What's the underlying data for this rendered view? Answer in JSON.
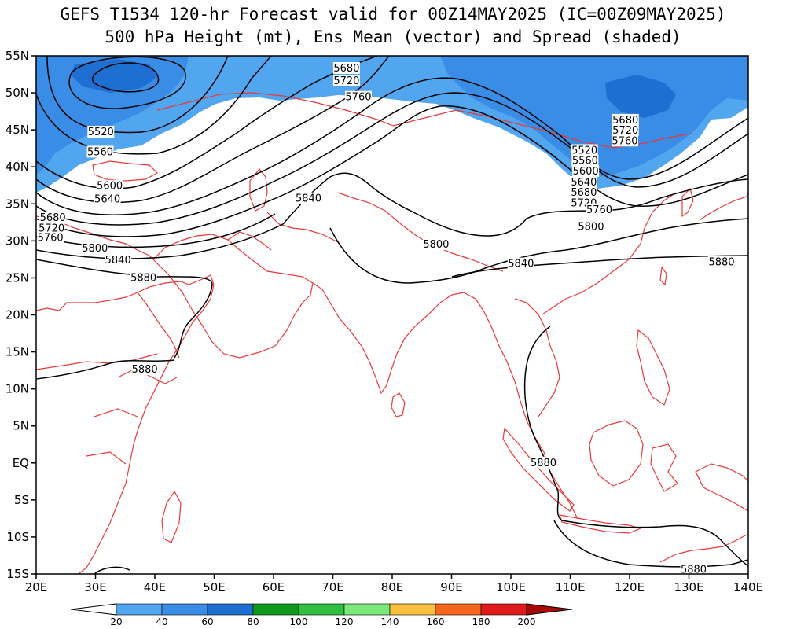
{
  "title_line1": "GEFS T1534 120-hr Forecast valid for 00Z14MAY2025 (IC=00Z09MAY2025)",
  "title_line2": "500 hPa Height (mt), Ens Mean (vector) and Spread (shaded)",
  "map": {
    "lon_range": [
      20,
      140
    ],
    "lat_range": [
      -15,
      55
    ],
    "lon_labels": [
      "20E",
      "30E",
      "40E",
      "50E",
      "60E",
      "70E",
      "80E",
      "90E",
      "100E",
      "110E",
      "120E",
      "130E",
      "140E"
    ],
    "lat_labels": [
      "55N",
      "50N",
      "45N",
      "40N",
      "35N",
      "30N",
      "25N",
      "20N",
      "15N",
      "10N",
      "5N",
      "EQ",
      "5S",
      "10S",
      "15S"
    ],
    "coastline_color": "#e8393a",
    "contour_color": "#000000"
  },
  "contour_labels": [
    {
      "text": "5680",
      "lon": 119.3,
      "lat": 46.3
    },
    {
      "text": "5680",
      "lon": 72.3,
      "lat": 53.3
    },
    {
      "text": "5680",
      "lon": 22.8,
      "lat": 33.1
    },
    {
      "text": "5720",
      "lon": 72.3,
      "lat": 51.6
    },
    {
      "text": "5720",
      "lon": 119.3,
      "lat": 44.9
    },
    {
      "text": "5720",
      "lon": 22.6,
      "lat": 31.7
    },
    {
      "text": "5760",
      "lon": 74.3,
      "lat": 49.4
    },
    {
      "text": "5760",
      "lon": 119.2,
      "lat": 43.5
    },
    {
      "text": "5760",
      "lon": 22.4,
      "lat": 30.4
    },
    {
      "text": "5520",
      "lon": 30.9,
      "lat": 44.7
    },
    {
      "text": "5520",
      "lon": 112.4,
      "lat": 42.2
    },
    {
      "text": "5560",
      "lon": 30.8,
      "lat": 42.0
    },
    {
      "text": "5560",
      "lon": 112.5,
      "lat": 40.8
    },
    {
      "text": "5600",
      "lon": 32.4,
      "lat": 37.4
    },
    {
      "text": "5600",
      "lon": 112.6,
      "lat": 39.4
    },
    {
      "text": "5640",
      "lon": 32.0,
      "lat": 35.6
    },
    {
      "text": "5640",
      "lon": 112.3,
      "lat": 37.9
    },
    {
      "text": "5680",
      "lon": 112.3,
      "lat": 36.5
    },
    {
      "text": "5720",
      "lon": 112.3,
      "lat": 35.1
    },
    {
      "text": "5800",
      "lon": 29.9,
      "lat": 29.0
    },
    {
      "text": "5840",
      "lon": 33.8,
      "lat": 27.4
    },
    {
      "text": "5880",
      "lon": 38.1,
      "lat": 25.0
    },
    {
      "text": "5840",
      "lon": 65.9,
      "lat": 35.7
    },
    {
      "text": "5800",
      "lon": 87.4,
      "lat": 29.5
    },
    {
      "text": "5840",
      "lon": 101.7,
      "lat": 26.9
    },
    {
      "text": "5760",
      "lon": 114.9,
      "lat": 34.2
    },
    {
      "text": "5800",
      "lon": 113.5,
      "lat": 31.9
    },
    {
      "text": "5880",
      "lon": 135.5,
      "lat": 27.1
    },
    {
      "text": "5880",
      "lon": 38.3,
      "lat": 12.6
    },
    {
      "text": "5880",
      "lon": 105.5,
      "lat": 0.0
    },
    {
      "text": "5880",
      "lon": 130.8,
      "lat": -14.4
    }
  ],
  "colorbar": {
    "labels": [
      "20",
      "40",
      "60",
      "80",
      "100",
      "120",
      "140",
      "160",
      "180",
      "200"
    ],
    "colors": [
      "#52a6f0",
      "#3a8de6",
      "#1f6fd2",
      "#0c9a1c",
      "#2ec03e",
      "#7ae87a",
      "#f8c03c",
      "#f8661c",
      "#e01a1a"
    ],
    "min_color": "#ffffff",
    "max_color": "#a80808"
  }
}
